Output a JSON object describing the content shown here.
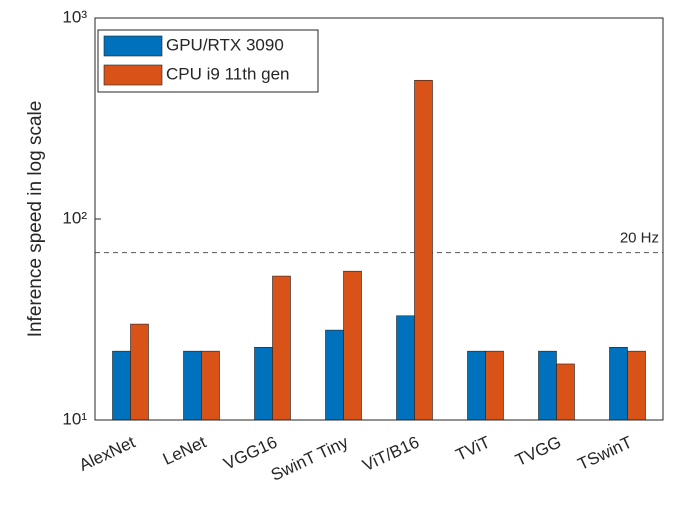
{
  "chart_data": {
    "type": "bar",
    "y_label": "Inference speed in log scale",
    "categories": [
      "AlexNet",
      "LeNet",
      "VGG16",
      "SwinT Tiny",
      "ViT/B16",
      "TViT",
      "TVGG",
      "TSwinT"
    ],
    "series": [
      {
        "name": "GPU/RTX 3090",
        "color": "#0072bd",
        "values": [
          22,
          22,
          23,
          28,
          33,
          22,
          22,
          23
        ]
      },
      {
        "name": "CPU i9 11th gen",
        "color": "#d95319",
        "values": [
          30,
          22,
          52,
          55,
          490,
          22,
          19,
          22
        ]
      }
    ],
    "log_scale": true,
    "ylim": [
      10,
      1000
    ],
    "yticks": [
      {
        "value": 10,
        "label": "10¹"
      },
      {
        "value": 100,
        "label": "10²"
      },
      {
        "value": 1000,
        "label": "10³"
      }
    ],
    "reference_line": {
      "value": 68,
      "label": "20 Hz"
    },
    "legend": "upper left"
  }
}
